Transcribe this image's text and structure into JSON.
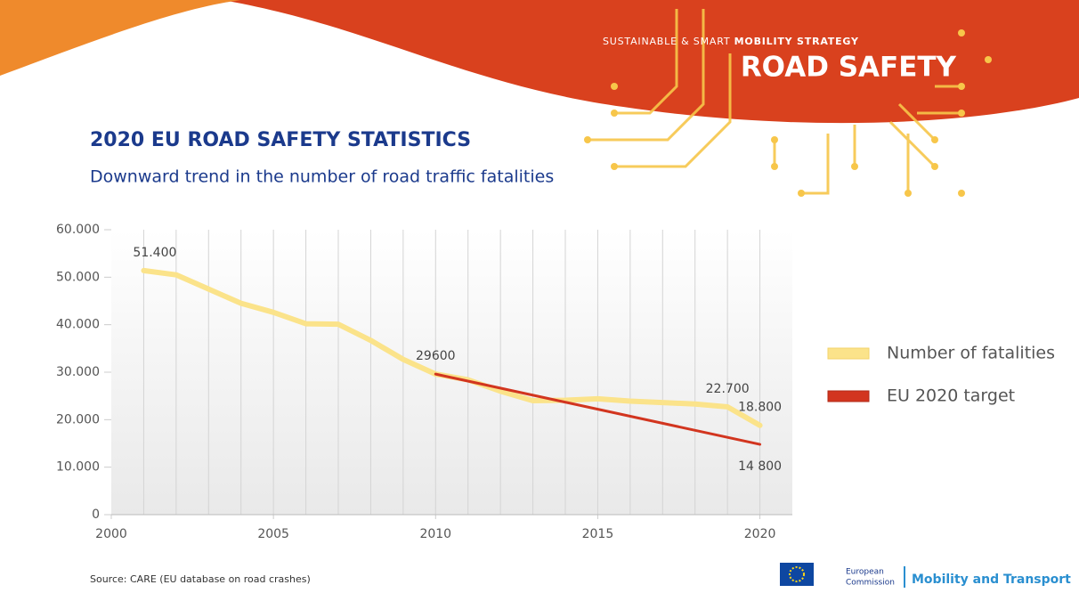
{
  "header": {
    "kicker_light": "SUSTAINABLE & SMART",
    "kicker_bold": "MOBILITY STRATEGY",
    "title": "ROAD SAFETY"
  },
  "chart_data": {
    "type": "line",
    "title": "2020 EU ROAD SAFETY STATISTICS",
    "subtitle": "Downward trend in the number of road traffic fatalities",
    "xlim": [
      2000,
      2021
    ],
    "xticks": [
      2000,
      2005,
      2010,
      2015,
      2020
    ],
    "ylim": [
      0,
      60000
    ],
    "yticks": [
      0,
      {
        "value": 10000,
        "label": "10.000"
      },
      {
        "value": 20000,
        "label": "20.000"
      },
      {
        "value": 30000,
        "label": "30.000"
      },
      {
        "value": 40000,
        "label": "40.000"
      },
      {
        "value": 50000,
        "label": "50.000"
      },
      {
        "value": 60000,
        "label": "60.000"
      }
    ],
    "grid": true,
    "legend": "right",
    "series": [
      {
        "name": "Number of fatalities",
        "color": "#fbe38a",
        "x": [
          2001,
          2002,
          2003,
          2004,
          2005,
          2006,
          2007,
          2008,
          2009,
          2010,
          2011,
          2012,
          2013,
          2014,
          2015,
          2016,
          2017,
          2018,
          2019,
          2020
        ],
        "values": [
          51400,
          50500,
          47500,
          44500,
          42600,
          40200,
          40100,
          36700,
          32700,
          29600,
          28400,
          26000,
          24000,
          24100,
          24400,
          23900,
          23600,
          23300,
          22700,
          18800
        ],
        "value_labels": [
          "51.400",
          null,
          null,
          null,
          null,
          null,
          null,
          null,
          null,
          "29600",
          null,
          null,
          null,
          null,
          null,
          null,
          null,
          null,
          "22.700",
          "18.800"
        ]
      },
      {
        "name": "EU 2020 target",
        "color": "#d2351f",
        "x": [
          2010,
          2020
        ],
        "values": [
          29600,
          14800
        ],
        "value_labels": [
          null,
          "14 800"
        ]
      }
    ]
  },
  "source": "Source: CARE (EU database on road crashes)",
  "footer": {
    "org_line1": "European",
    "org_line2": "Commission",
    "dg": "Mobility and Transport"
  }
}
